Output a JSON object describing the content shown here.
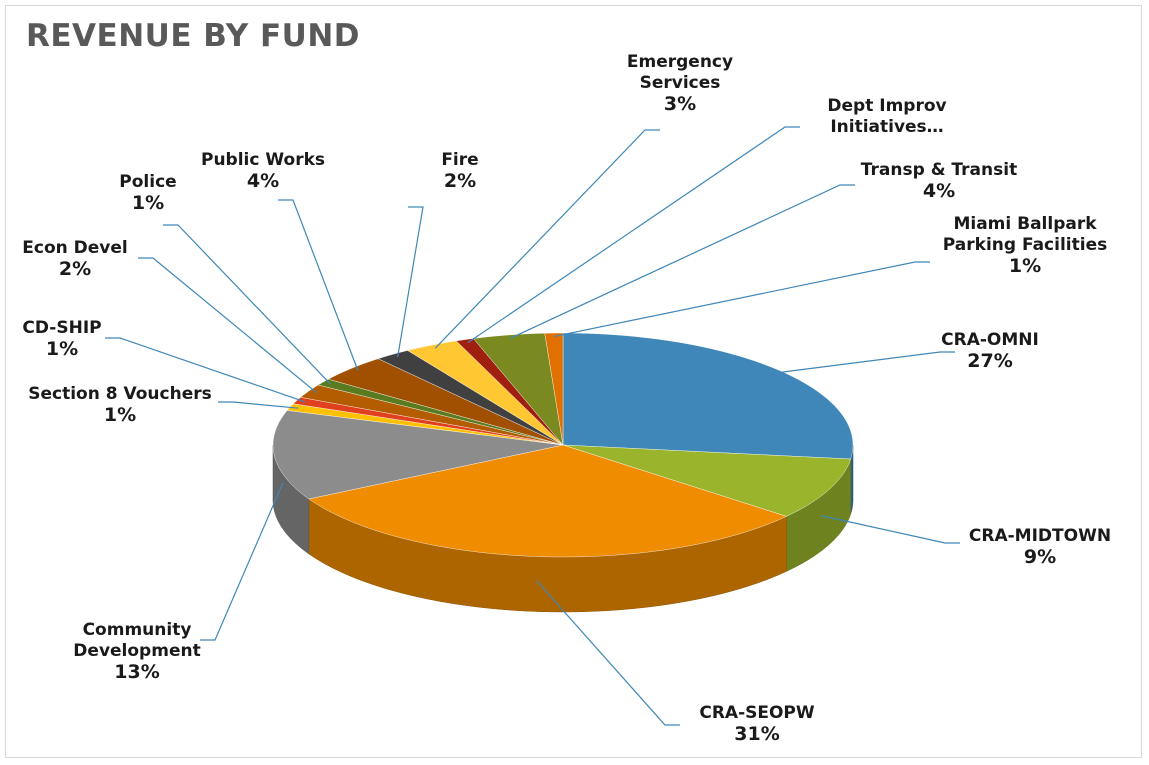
{
  "chart_data": {
    "type": "pie",
    "title": "REVENUE BY FUND",
    "categories": [
      "CRA-OMNI",
      "CRA-MIDTOWN",
      "CRA-SEOPW",
      "Community Development",
      "Section 8 Vouchers",
      "CD-SHIP",
      "Econ Devel",
      "Police",
      "Public Works",
      "Fire",
      "Emergency Services",
      "Dept Improv Initiatives…",
      "Transp & Transit",
      "Miami Ballpark Parking Facilities"
    ],
    "values": [
      27,
      9,
      31,
      13,
      1,
      1,
      2,
      1,
      4,
      2,
      3,
      1,
      4,
      1
    ],
    "value_labels": [
      "27%",
      "9%",
      "31%",
      "13%",
      "1%",
      "1%",
      "2%",
      "1%",
      "4%",
      "2%",
      "3%",
      null,
      "4%",
      "1%"
    ],
    "colors": [
      "#3f87b8",
      "#9ab52c",
      "#f08c00",
      "#8c8c8c",
      "#ffc000",
      "#e0401e",
      "#b35c00",
      "#5a7a20",
      "#a05000",
      "#404040",
      "#ffc832",
      "#a02010",
      "#7a8a20",
      "#e07000"
    ]
  }
}
